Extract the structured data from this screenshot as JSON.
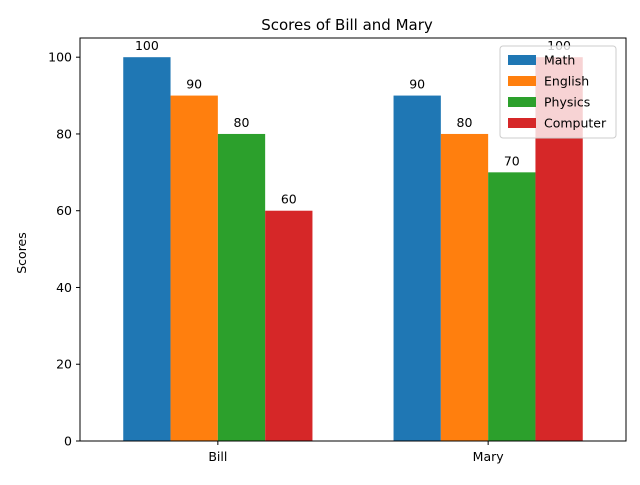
{
  "chart_data": {
    "type": "bar",
    "title": "Scores of Bill and Mary",
    "xlabel": "",
    "ylabel": "Scores",
    "categories": [
      "Bill",
      "Mary"
    ],
    "series": [
      {
        "name": "Math",
        "values": [
          100,
          90
        ],
        "color": "#1f77b4"
      },
      {
        "name": "English",
        "values": [
          90,
          80
        ],
        "color": "#ff7f0e"
      },
      {
        "name": "Physics",
        "values": [
          80,
          70
        ],
        "color": "#2ca02c"
      },
      {
        "name": "Computer",
        "values": [
          60,
          100
        ],
        "color": "#d62728"
      }
    ],
    "ylim": [
      0,
      105
    ],
    "yticks": [
      0,
      20,
      40,
      60,
      80,
      100
    ],
    "grid": false,
    "legend_position": "top-right",
    "data_labels": true
  }
}
